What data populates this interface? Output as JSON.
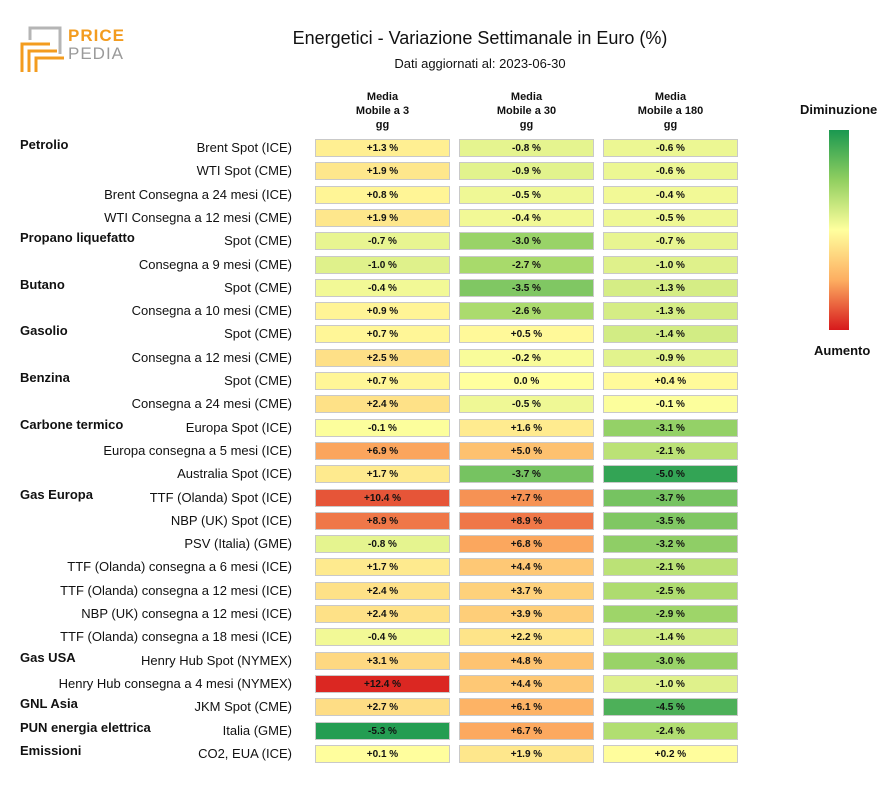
{
  "logo": {
    "line1": "PRICE",
    "line2": "PEDIA"
  },
  "title": "Energetici - Variazione Settimanale in Euro (%)",
  "subtitle": "Dati aggiornati al: 2023-06-30",
  "legend": {
    "top": "Diminuzione",
    "bottom": "Aumento"
  },
  "chart_data": {
    "type": "heatmap",
    "columns": [
      "Media Mobile a 3 gg",
      "Media Mobile a 30 gg",
      "Media Mobile a 180 gg"
    ],
    "color_scale": {
      "negative": "#1a9850",
      "zero": "#ffff9e",
      "positive": "#d7191c"
    },
    "rows": [
      {
        "group": "Petrolio",
        "label": "Brent Spot (ICE)",
        "values": [
          1.3,
          -0.8,
          -0.6
        ]
      },
      {
        "group": "",
        "label": "WTI Spot (CME)",
        "values": [
          1.9,
          -0.9,
          -0.6
        ]
      },
      {
        "group": "",
        "label": "Brent Consegna a 24 mesi (ICE)",
        "values": [
          0.8,
          -0.5,
          -0.4
        ]
      },
      {
        "group": "",
        "label": "WTI Consegna a 12 mesi (CME)",
        "values": [
          1.9,
          -0.4,
          -0.5
        ]
      },
      {
        "group": "Propano liquefatto",
        "label": "Spot (CME)",
        "values": [
          -0.7,
          -3.0,
          -0.7
        ]
      },
      {
        "group": "",
        "label": "Consegna a 9 mesi (CME)",
        "values": [
          -1.0,
          -2.7,
          -1.0
        ]
      },
      {
        "group": "Butano",
        "label": "Spot (CME)",
        "values": [
          -0.4,
          -3.5,
          -1.3
        ]
      },
      {
        "group": "",
        "label": "Consegna a 10 mesi (CME)",
        "values": [
          0.9,
          -2.6,
          -1.3
        ]
      },
      {
        "group": "Gasolio",
        "label": "Spot (CME)",
        "values": [
          0.7,
          0.5,
          -1.4
        ]
      },
      {
        "group": "",
        "label": "Consegna a 12 mesi (CME)",
        "values": [
          2.5,
          -0.2,
          -0.9
        ]
      },
      {
        "group": "Benzina",
        "label": "Spot (CME)",
        "values": [
          0.7,
          0.0,
          0.4
        ]
      },
      {
        "group": "",
        "label": "Consegna a 24 mesi (CME)",
        "values": [
          2.4,
          -0.5,
          -0.1
        ]
      },
      {
        "group": "Carbone termico",
        "label": "Europa Spot (ICE)",
        "values": [
          -0.1,
          1.6,
          -3.1
        ]
      },
      {
        "group": "",
        "label": "Europa consegna a 5 mesi (ICE)",
        "values": [
          6.9,
          5.0,
          -2.1
        ]
      },
      {
        "group": "",
        "label": "Australia Spot (ICE)",
        "values": [
          1.7,
          -3.7,
          -5.0
        ]
      },
      {
        "group": "Gas Europa",
        "label": "TTF (Olanda) Spot (ICE)",
        "values": [
          10.4,
          7.7,
          -3.7
        ]
      },
      {
        "group": "",
        "label": "NBP (UK) Spot (ICE)",
        "values": [
          8.9,
          8.9,
          -3.5
        ]
      },
      {
        "group": "",
        "label": "PSV (Italia) (GME)",
        "values": [
          -0.8,
          6.8,
          -3.2
        ]
      },
      {
        "group": "",
        "label": "TTF (Olanda) consegna a 6 mesi (ICE)",
        "values": [
          1.7,
          4.4,
          -2.1
        ]
      },
      {
        "group": "",
        "label": "TTF (Olanda) consegna a 12 mesi (ICE)",
        "values": [
          2.4,
          3.7,
          -2.5
        ]
      },
      {
        "group": "",
        "label": "NBP (UK) consegna a 12 mesi (ICE)",
        "values": [
          2.4,
          3.9,
          -2.9
        ]
      },
      {
        "group": "",
        "label": "TTF (Olanda) consegna a 18 mesi (ICE)",
        "values": [
          -0.4,
          2.2,
          -1.4
        ]
      },
      {
        "group": "Gas USA",
        "label": "Henry Hub Spot (NYMEX)",
        "values": [
          3.1,
          4.8,
          -3.0
        ]
      },
      {
        "group": "",
        "label": "Henry Hub consegna a 4 mesi (NYMEX)",
        "values": [
          12.4,
          4.4,
          -1.0
        ]
      },
      {
        "group": "GNL Asia",
        "label": "JKM Spot (CME)",
        "values": [
          2.7,
          6.1,
          -4.5
        ]
      },
      {
        "group": "PUN energia elettrica",
        "label": "Italia (GME)",
        "values": [
          -5.3,
          6.7,
          -2.4
        ]
      },
      {
        "group": "Emissioni",
        "label": "CO2, EUA (ICE)",
        "values": [
          0.1,
          1.9,
          0.2
        ]
      }
    ]
  }
}
